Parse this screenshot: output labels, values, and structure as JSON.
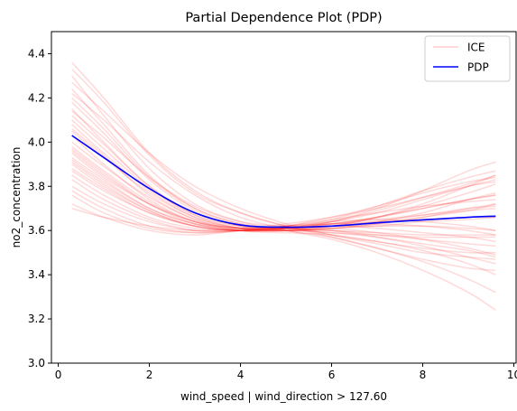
{
  "chart_data": {
    "type": "line",
    "title": "Partial Dependence Plot (PDP)",
    "xlabel": "wind_speed | wind_direction > 127.60",
    "ylabel": "no2_concentration",
    "xlim": [
      -0.15,
      10.05
    ],
    "ylim": [
      3.0,
      4.5
    ],
    "xticks": [
      0,
      2,
      4,
      6,
      8,
      10
    ],
    "yticks": [
      3.0,
      3.2,
      3.4,
      3.6,
      3.8,
      4.0,
      4.2,
      4.4
    ],
    "grid": false,
    "legend": {
      "placement": "top-right",
      "entries": [
        "ICE",
        "PDP"
      ]
    },
    "colors": {
      "ice": "#ff0000",
      "pdp": "#0000ff"
    },
    "x": [
      0.3,
      1.0,
      2.0,
      3.0,
      4.0,
      5.0,
      6.0,
      7.0,
      8.0,
      9.0,
      9.6
    ],
    "series": [
      {
        "name": "PDP",
        "values": [
          4.03,
          3.93,
          3.79,
          3.68,
          3.625,
          3.615,
          3.62,
          3.635,
          3.648,
          3.66,
          3.665
        ]
      }
    ],
    "ice_series": [
      [
        4.36,
        4.2,
        3.95,
        3.78,
        3.68,
        3.62,
        3.58,
        3.55,
        3.52,
        3.5,
        3.5
      ],
      [
        4.33,
        4.18,
        3.94,
        3.77,
        3.68,
        3.62,
        3.57,
        3.52,
        3.47,
        3.43,
        3.42
      ],
      [
        4.3,
        4.12,
        3.88,
        3.72,
        3.64,
        3.6,
        3.56,
        3.5,
        3.42,
        3.32,
        3.24
      ],
      [
        4.27,
        4.14,
        3.95,
        3.8,
        3.7,
        3.63,
        3.58,
        3.54,
        3.5,
        3.48,
        3.47
      ],
      [
        4.24,
        4.08,
        3.85,
        3.7,
        3.63,
        3.6,
        3.57,
        3.52,
        3.46,
        3.38,
        3.32
      ],
      [
        4.2,
        4.06,
        3.84,
        3.7,
        3.63,
        3.61,
        3.6,
        3.59,
        3.58,
        3.58,
        3.58
      ],
      [
        4.18,
        4.04,
        3.83,
        3.69,
        3.62,
        3.6,
        3.61,
        3.63,
        3.66,
        3.7,
        3.72
      ],
      [
        4.15,
        4.0,
        3.8,
        3.67,
        3.61,
        3.6,
        3.62,
        3.66,
        3.72,
        3.8,
        3.85
      ],
      [
        4.12,
        3.99,
        3.8,
        3.68,
        3.62,
        3.61,
        3.63,
        3.65,
        3.67,
        3.69,
        3.7
      ],
      [
        4.1,
        3.97,
        3.79,
        3.67,
        3.62,
        3.61,
        3.6,
        3.57,
        3.53,
        3.48,
        3.45
      ],
      [
        4.08,
        3.95,
        3.78,
        3.66,
        3.61,
        3.6,
        3.61,
        3.62,
        3.64,
        3.65,
        3.66
      ],
      [
        4.05,
        3.93,
        3.77,
        3.66,
        3.61,
        3.6,
        3.62,
        3.66,
        3.71,
        3.77,
        3.81
      ],
      [
        4.03,
        3.9,
        3.74,
        3.64,
        3.6,
        3.6,
        3.64,
        3.7,
        3.78,
        3.87,
        3.91
      ],
      [
        4.0,
        3.89,
        3.75,
        3.65,
        3.61,
        3.6,
        3.61,
        3.63,
        3.66,
        3.69,
        3.72
      ],
      [
        3.98,
        3.87,
        3.73,
        3.64,
        3.61,
        3.61,
        3.62,
        3.62,
        3.62,
        3.61,
        3.6
      ],
      [
        3.96,
        3.85,
        3.72,
        3.64,
        3.61,
        3.61,
        3.61,
        3.59,
        3.56,
        3.52,
        3.49
      ],
      [
        3.95,
        3.84,
        3.72,
        3.64,
        3.61,
        3.61,
        3.63,
        3.66,
        3.7,
        3.74,
        3.76
      ],
      [
        3.93,
        3.83,
        3.7,
        3.63,
        3.6,
        3.61,
        3.65,
        3.71,
        3.78,
        3.84,
        3.87
      ],
      [
        3.92,
        3.82,
        3.7,
        3.63,
        3.61,
        3.62,
        3.63,
        3.64,
        3.65,
        3.66,
        3.66
      ],
      [
        3.9,
        3.8,
        3.69,
        3.62,
        3.6,
        3.6,
        3.6,
        3.58,
        3.56,
        3.54,
        3.53
      ],
      [
        3.88,
        3.79,
        3.68,
        3.62,
        3.6,
        3.61,
        3.64,
        3.69,
        3.75,
        3.81,
        3.85
      ],
      [
        3.87,
        3.78,
        3.68,
        3.62,
        3.6,
        3.61,
        3.62,
        3.64,
        3.67,
        3.7,
        3.71
      ],
      [
        3.85,
        3.76,
        3.66,
        3.61,
        3.6,
        3.61,
        3.62,
        3.61,
        3.59,
        3.57,
        3.55
      ],
      [
        3.83,
        3.74,
        3.65,
        3.6,
        3.6,
        3.62,
        3.66,
        3.71,
        3.77,
        3.82,
        3.84
      ],
      [
        3.8,
        3.72,
        3.64,
        3.6,
        3.6,
        3.61,
        3.63,
        3.66,
        3.7,
        3.74,
        3.76
      ],
      [
        3.78,
        3.7,
        3.62,
        3.59,
        3.6,
        3.62,
        3.65,
        3.68,
        3.71,
        3.73,
        3.74
      ],
      [
        3.76,
        3.68,
        3.61,
        3.59,
        3.6,
        3.62,
        3.64,
        3.65,
        3.64,
        3.62,
        3.6
      ],
      [
        3.72,
        3.66,
        3.6,
        3.58,
        3.6,
        3.62,
        3.63,
        3.63,
        3.62,
        3.6,
        3.58
      ],
      [
        3.7,
        3.66,
        3.62,
        3.6,
        3.61,
        3.63,
        3.66,
        3.7,
        3.75,
        3.8,
        3.83
      ],
      [
        4.22,
        4.1,
        3.91,
        3.76,
        3.66,
        3.61,
        3.59,
        3.58,
        3.57,
        3.57,
        3.57
      ],
      [
        4.14,
        4.02,
        3.84,
        3.71,
        3.64,
        3.62,
        3.62,
        3.64,
        3.68,
        3.74,
        3.77
      ],
      [
        4.06,
        3.94,
        3.76,
        3.65,
        3.6,
        3.59,
        3.58,
        3.55,
        3.51,
        3.45,
        3.4
      ],
      [
        3.97,
        3.86,
        3.72,
        3.63,
        3.6,
        3.61,
        3.64,
        3.68,
        3.74,
        3.8,
        3.82
      ],
      [
        3.91,
        3.81,
        3.69,
        3.62,
        3.6,
        3.6,
        3.59,
        3.57,
        3.54,
        3.51,
        3.48
      ]
    ]
  }
}
